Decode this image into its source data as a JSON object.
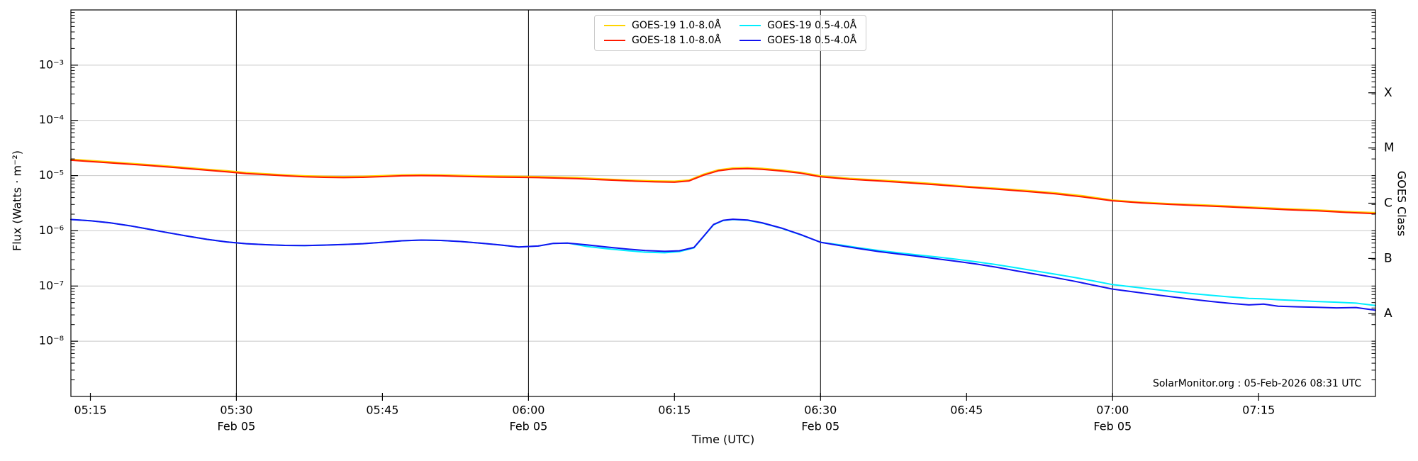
{
  "chart_data": {
    "type": "line",
    "title": "",
    "xlabel": "Time (UTC)",
    "ylabel": "Flux (Watts · m⁻²)",
    "ylabel_right": "GOES Class",
    "annotation": "SolarMonitor.org : 05-Feb-2026 08:31 UTC",
    "x_unit": "minutes after 00:00 UTC, 05 Feb 2026",
    "xlim": [
      313,
      447
    ],
    "ylim_log10": [
      -9,
      -2
    ],
    "grid": {
      "horizontal_color": "#c9c9c9",
      "vertical_color": "#000000"
    },
    "x_ticks": [
      {
        "t": 315,
        "label": "05:15",
        "major": false
      },
      {
        "t": 330,
        "label": "05:30",
        "major": true,
        "date": "Feb 05"
      },
      {
        "t": 345,
        "label": "05:45",
        "major": false
      },
      {
        "t": 360,
        "label": "06:00",
        "major": true,
        "date": "Feb 05"
      },
      {
        "t": 375,
        "label": "06:15",
        "major": false
      },
      {
        "t": 390,
        "label": "06:30",
        "major": true,
        "date": "Feb 05"
      },
      {
        "t": 405,
        "label": "06:45",
        "major": false
      },
      {
        "t": 420,
        "label": "07:00",
        "major": true,
        "date": "Feb 05"
      },
      {
        "t": 435,
        "label": "07:15",
        "major": false
      }
    ],
    "y_ticks": [
      {
        "exp": -3,
        "label": "10⁻³"
      },
      {
        "exp": -4,
        "label": "10⁻⁴"
      },
      {
        "exp": -5,
        "label": "10⁻⁵"
      },
      {
        "exp": -6,
        "label": "10⁻⁶"
      },
      {
        "exp": -7,
        "label": "10⁻⁷"
      },
      {
        "exp": -8,
        "label": "10⁻⁸"
      }
    ],
    "class_labels": [
      {
        "label": "X",
        "log10": -3.5
      },
      {
        "label": "M",
        "log10": -4.5
      },
      {
        "label": "C",
        "log10": -5.5
      },
      {
        "label": "B",
        "log10": -6.5
      },
      {
        "label": "A",
        "log10": -7.5
      }
    ],
    "legend_display_order": [
      0,
      2,
      1,
      3
    ],
    "series": [
      {
        "name": "GOES-19 1.0-8.0Å",
        "color": "#ffd400",
        "derived": "same as GOES-18 1.0-8.0Å scaled 1.04 (hidden beneath red)",
        "t": [
          313,
          315,
          317,
          319,
          321,
          323,
          325,
          327,
          329,
          331,
          333,
          335,
          337,
          339,
          341,
          343,
          345,
          347,
          349,
          351,
          353,
          355,
          357,
          359,
          361,
          363,
          365,
          367,
          369,
          371,
          373,
          375,
          376.5,
          378,
          379.5,
          381,
          382.5,
          384,
          386,
          388,
          390,
          393,
          396,
          399,
          402,
          405,
          408,
          411,
          414,
          417,
          420,
          423,
          426,
          429,
          432,
          435,
          438,
          441,
          444,
          447
        ],
        "v": [
          1.98e-05,
          1.87e-05,
          1.77e-05,
          1.67e-05,
          1.58e-05,
          1.49e-05,
          1.39e-05,
          1.3e-05,
          1.22e-05,
          1.13e-05,
          1.08e-05,
          1.03e-05,
          9.9e-06,
          9.7e-06,
          9.6e-06,
          9.7e-06,
          1e-05,
          1.03e-05,
          1.04e-05,
          1.03e-05,
          1.01e-05,
          9.9e-06,
          9.8e-06,
          9.7e-06,
          9.6e-06,
          9.4e-06,
          9.2e-06,
          8.8e-06,
          8.5e-06,
          8.2e-06,
          8e-06,
          7.9e-06,
          8.3e-06,
          1.06e-05,
          1.27e-05,
          1.37e-05,
          1.39e-05,
          1.35e-05,
          1.26e-05,
          1.14e-05,
          9.9e-06,
          8.9e-06,
          8.3e-06,
          7.7e-06,
          7.1e-06,
          6.4e-06,
          5.9e-06,
          5.4e-06,
          4.9e-06,
          4.3e-06,
          3.6e-06,
          3.3e-06,
          3.1e-06,
          2.96e-06,
          2.81e-06,
          2.65e-06,
          2.5e-06,
          2.39e-06,
          2.24e-06,
          2.13e-06
        ]
      },
      {
        "name": "GOES-18 1.0-8.0Å",
        "color": "#ff1a00",
        "t": [
          313,
          315,
          317,
          319,
          321,
          323,
          325,
          327,
          329,
          331,
          333,
          335,
          337,
          339,
          341,
          343,
          345,
          347,
          349,
          351,
          353,
          355,
          357,
          359,
          361,
          363,
          365,
          367,
          369,
          371,
          373,
          375,
          376.5,
          378,
          379.5,
          381,
          382.5,
          384,
          386,
          388,
          390,
          393,
          396,
          399,
          402,
          405,
          408,
          411,
          414,
          417,
          420,
          423,
          426,
          429,
          432,
          435,
          438,
          441,
          444,
          447
        ],
        "v": [
          1.9e-05,
          1.8e-05,
          1.7e-05,
          1.61e-05,
          1.52e-05,
          1.43e-05,
          1.34e-05,
          1.25e-05,
          1.17e-05,
          1.09e-05,
          1.04e-05,
          9.9e-06,
          9.5e-06,
          9.3e-06,
          9.2e-06,
          9.3e-06,
          9.6e-06,
          9.9e-06,
          1e-05,
          9.9e-06,
          9.7e-06,
          9.5e-06,
          9.4e-06,
          9.3e-06,
          9.2e-06,
          9e-06,
          8.8e-06,
          8.5e-06,
          8.2e-06,
          7.9e-06,
          7.7e-06,
          7.6e-06,
          8e-06,
          1.02e-05,
          1.22e-05,
          1.32e-05,
          1.34e-05,
          1.3e-05,
          1.21e-05,
          1.1e-05,
          9.5e-06,
          8.6e-06,
          8e-06,
          7.4e-06,
          6.8e-06,
          6.2e-06,
          5.7e-06,
          5.2e-06,
          4.7e-06,
          4.1e-06,
          3.5e-06,
          3.2e-06,
          3e-06,
          2.85e-06,
          2.7e-06,
          2.55e-06,
          2.4e-06,
          2.3e-06,
          2.15e-06,
          2.05e-06
        ]
      },
      {
        "name": "GOES-19 0.5-4.0Å",
        "color": "#00eeff",
        "t": [
          313,
          315,
          317,
          319,
          321,
          323,
          325,
          327,
          329,
          331,
          333,
          335,
          337,
          339,
          341,
          343,
          345,
          347,
          349,
          351,
          353,
          355,
          357,
          359,
          361,
          362.5,
          364,
          366,
          368,
          370,
          372,
          374,
          375.5,
          377,
          378,
          379,
          380,
          381,
          382.5,
          384,
          386,
          388,
          390,
          392,
          394,
          396,
          398,
          400,
          402,
          404,
          406,
          408,
          410,
          412,
          414,
          416,
          418,
          420,
          422,
          424,
          426,
          428,
          430,
          432,
          434,
          435.5,
          437,
          439,
          441,
          443,
          445,
          447
        ],
        "v": [
          1.6e-06,
          1.52e-06,
          1.4e-06,
          1.24e-06,
          1.07e-06,
          9.2e-07,
          8e-07,
          7e-07,
          6.3e-07,
          5.85e-07,
          5.6e-07,
          5.45e-07,
          5.4e-07,
          5.5e-07,
          5.65e-07,
          5.85e-07,
          6.2e-07,
          6.6e-07,
          6.8e-07,
          6.7e-07,
          6.4e-07,
          6e-07,
          5.55e-07,
          5.1e-07,
          5.3e-07,
          5.9e-07,
          6e-07,
          5.2e-07,
          4.75e-07,
          4.4e-07,
          4.1e-07,
          4e-07,
          4.2e-07,
          4.9e-07,
          7.9e-07,
          1.28e-06,
          1.53e-06,
          1.6e-06,
          1.55e-06,
          1.38e-06,
          1.11e-06,
          8.4e-07,
          6.2e-07,
          5.55e-07,
          4.9e-07,
          4.4e-07,
          4e-07,
          3.65e-07,
          3.35e-07,
          3.05e-07,
          2.75e-07,
          2.45e-07,
          2.15e-07,
          1.88e-07,
          1.65e-07,
          1.44e-07,
          1.24e-07,
          1.06e-07,
          9.65e-08,
          8.8e-08,
          8e-08,
          7.35e-08,
          6.8e-08,
          6.35e-08,
          5.97e-08,
          5.85e-08,
          5.65e-08,
          5.45e-08,
          5.25e-08,
          5.1e-08,
          4.9e-08,
          4.45e-08
        ]
      },
      {
        "name": "GOES-18 0.5-4.0Å",
        "color": "#1212f0",
        "t": [
          313,
          315,
          317,
          319,
          321,
          323,
          325,
          327,
          329,
          331,
          333,
          335,
          337,
          339,
          341,
          343,
          345,
          347,
          349,
          351,
          353,
          355,
          357,
          359,
          361,
          362.5,
          364,
          366,
          368,
          370,
          372,
          374,
          375.5,
          377,
          378,
          379,
          380,
          381,
          382.5,
          384,
          386,
          388,
          390,
          392,
          394,
          396,
          398,
          400,
          402,
          404,
          406,
          408,
          410,
          412,
          414,
          416,
          418,
          420,
          422,
          424,
          426,
          428,
          430,
          432,
          434,
          435.5,
          437,
          439,
          441,
          443,
          445,
          447
        ],
        "v": [
          1.6e-06,
          1.52e-06,
          1.4e-06,
          1.24e-06,
          1.07e-06,
          9.2e-07,
          8e-07,
          7e-07,
          6.3e-07,
          5.85e-07,
          5.6e-07,
          5.45e-07,
          5.4e-07,
          5.5e-07,
          5.65e-07,
          5.85e-07,
          6.2e-07,
          6.6e-07,
          6.8e-07,
          6.7e-07,
          6.4e-07,
          6e-07,
          5.55e-07,
          5.1e-07,
          5.3e-07,
          5.9e-07,
          6e-07,
          5.55e-07,
          5.1e-07,
          4.7e-07,
          4.4e-07,
          4.25e-07,
          4.35e-07,
          5e-07,
          8e-07,
          1.3e-06,
          1.55e-06,
          1.62e-06,
          1.57e-06,
          1.4e-06,
          1.12e-06,
          8.5e-07,
          6.2e-07,
          5.4e-07,
          4.75e-07,
          4.2e-07,
          3.8e-07,
          3.45e-07,
          3.1e-07,
          2.8e-07,
          2.5e-07,
          2.2e-07,
          1.9e-07,
          1.65e-07,
          1.43e-07,
          1.23e-07,
          1.04e-07,
          8.8e-08,
          7.9e-08,
          7.1e-08,
          6.4e-08,
          5.78e-08,
          5.28e-08,
          4.87e-08,
          4.55e-08,
          4.7e-08,
          4.32e-08,
          4.2e-08,
          4.12e-08,
          4.02e-08,
          4.08e-08,
          3.65e-08
        ]
      }
    ]
  },
  "legend": {
    "items": [
      {
        "series_index": 0
      },
      {
        "series_index": 2
      },
      {
        "series_index": 1
      },
      {
        "series_index": 3
      }
    ]
  }
}
